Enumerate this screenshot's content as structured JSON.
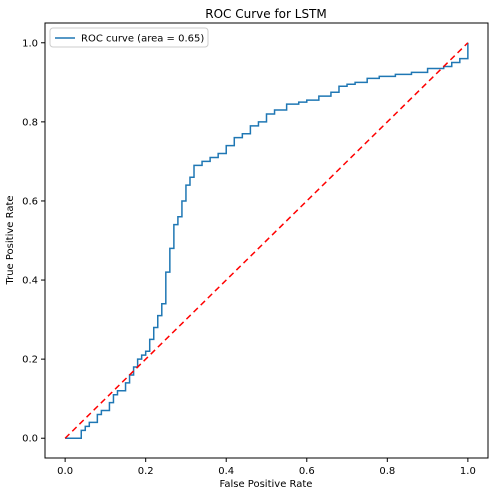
{
  "chart_data": {
    "type": "line",
    "title": "ROC Curve for LSTM",
    "xlabel": "False Positive Rate",
    "ylabel": "True Positive Rate",
    "xlim": [
      -0.05,
      1.05
    ],
    "ylim": [
      -0.05,
      1.05
    ],
    "xticks": [
      "0.0",
      "0.2",
      "0.4",
      "0.6",
      "0.8",
      "1.0"
    ],
    "yticks": [
      "0.0",
      "0.2",
      "0.4",
      "0.6",
      "0.8",
      "1.0"
    ],
    "grid": false,
    "legend_position": "top-left",
    "series": [
      {
        "name": "ROC curve (area = 0.65)",
        "color": "#1f77b4",
        "style": "solid",
        "x": [
          0.0,
          0.04,
          0.05,
          0.06,
          0.08,
          0.09,
          0.11,
          0.12,
          0.13,
          0.15,
          0.16,
          0.17,
          0.18,
          0.19,
          0.2,
          0.21,
          0.22,
          0.23,
          0.24,
          0.25,
          0.26,
          0.27,
          0.28,
          0.29,
          0.3,
          0.31,
          0.32,
          0.34,
          0.36,
          0.38,
          0.4,
          0.42,
          0.44,
          0.46,
          0.48,
          0.5,
          0.52,
          0.55,
          0.58,
          0.6,
          0.63,
          0.66,
          0.68,
          0.7,
          0.72,
          0.75,
          0.78,
          0.82,
          0.86,
          0.9,
          0.94,
          0.96,
          0.98,
          1.0
        ],
        "y": [
          0.0,
          0.02,
          0.03,
          0.04,
          0.06,
          0.07,
          0.09,
          0.11,
          0.12,
          0.14,
          0.16,
          0.18,
          0.2,
          0.21,
          0.22,
          0.25,
          0.28,
          0.31,
          0.34,
          0.42,
          0.48,
          0.54,
          0.56,
          0.6,
          0.64,
          0.66,
          0.69,
          0.7,
          0.71,
          0.72,
          0.74,
          0.76,
          0.77,
          0.79,
          0.8,
          0.82,
          0.83,
          0.845,
          0.85,
          0.855,
          0.865,
          0.875,
          0.89,
          0.895,
          0.9,
          0.91,
          0.915,
          0.92,
          0.925,
          0.935,
          0.94,
          0.95,
          0.96,
          1.0
        ]
      },
      {
        "name": "",
        "color": "#ff0000",
        "style": "dashed",
        "x": [
          0.0,
          1.0
        ],
        "y": [
          0.0,
          1.0
        ]
      }
    ]
  }
}
